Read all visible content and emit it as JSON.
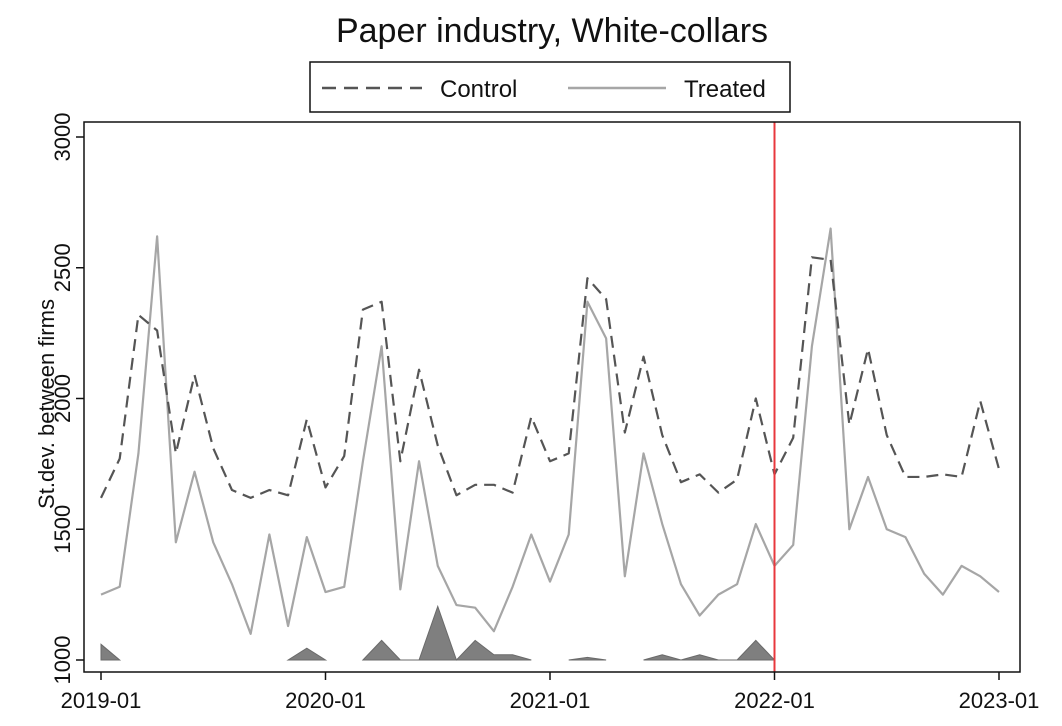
{
  "chart_data": {
    "type": "line",
    "title": "Paper industry, White-collars",
    "xlabel": "",
    "ylabel": "St.dev. between firms",
    "x_tick_labels": [
      "2019-01",
      "2020-01",
      "2021-01",
      "2022-01",
      "2023-01"
    ],
    "y_ticks": [
      1000,
      1500,
      2000,
      2500,
      3000
    ],
    "xlim": [
      "2019-01",
      "2023-01"
    ],
    "ylim": [
      1000,
      3000
    ],
    "grid": false,
    "legend_position": "top",
    "vertical_line": {
      "x": "2022-01",
      "color": "#e8383d"
    },
    "x": [
      "2019-01",
      "2019-02",
      "2019-03",
      "2019-04",
      "2019-05",
      "2019-06",
      "2019-07",
      "2019-08",
      "2019-09",
      "2019-10",
      "2019-11",
      "2019-12",
      "2020-01",
      "2020-02",
      "2020-03",
      "2020-04",
      "2020-05",
      "2020-06",
      "2020-07",
      "2020-08",
      "2020-09",
      "2020-10",
      "2020-11",
      "2020-12",
      "2021-01",
      "2021-02",
      "2021-03",
      "2021-04",
      "2021-05",
      "2021-06",
      "2021-07",
      "2021-08",
      "2021-09",
      "2021-10",
      "2021-11",
      "2021-12",
      "2022-01",
      "2022-02",
      "2022-03",
      "2022-04",
      "2022-05",
      "2022-06",
      "2022-07",
      "2022-08",
      "2022-09",
      "2022-10",
      "2022-11",
      "2022-12",
      "2023-01"
    ],
    "series": [
      {
        "name": "Control",
        "style": "dashed",
        "color": "#555555",
        "values": [
          1620,
          1770,
          2320,
          2260,
          1790,
          2090,
          1810,
          1650,
          1620,
          1650,
          1630,
          1920,
          1660,
          1780,
          2340,
          2370,
          1760,
          2110,
          1820,
          1630,
          1670,
          1670,
          1640,
          1930,
          1760,
          1790,
          2460,
          2380,
          1870,
          2160,
          1860,
          1680,
          1710,
          1640,
          1690,
          2000,
          1710,
          1850,
          2540,
          2530,
          1900,
          2190,
          1860,
          1700,
          1700,
          1710,
          1700,
          1990,
          1730
        ]
      },
      {
        "name": "Treated",
        "style": "solid",
        "color": "#a6a6a6",
        "values": [
          1250,
          1280,
          1790,
          2620,
          1450,
          1720,
          1450,
          1290,
          1100,
          1480,
          1130,
          1470,
          1260,
          1280,
          1760,
          2200,
          1270,
          1760,
          1360,
          1210,
          1200,
          1110,
          1280,
          1480,
          1300,
          1480,
          2370,
          2230,
          1320,
          1790,
          1520,
          1290,
          1170,
          1250,
          1290,
          1520,
          1360,
          1440,
          2200,
          2650,
          1500,
          1700,
          1500,
          1470,
          1330,
          1250,
          1360,
          1320,
          1260
        ]
      }
    ],
    "area_series": {
      "color": "#7f7f7f",
      "values": [
        1060,
        1000,
        null,
        null,
        null,
        null,
        null,
        null,
        null,
        null,
        1000,
        1045,
        1000,
        null,
        1000,
        1075,
        1000,
        1000,
        1205,
        1000,
        1075,
        1020,
        1020,
        1000,
        null,
        1000,
        1010,
        1000,
        null,
        1000,
        1020,
        1000,
        1020,
        1000,
        1000,
        1075,
        1000,
        null,
        null,
        null,
        null,
        null,
        null,
        null,
        null,
        null,
        null,
        null,
        null
      ]
    }
  }
}
